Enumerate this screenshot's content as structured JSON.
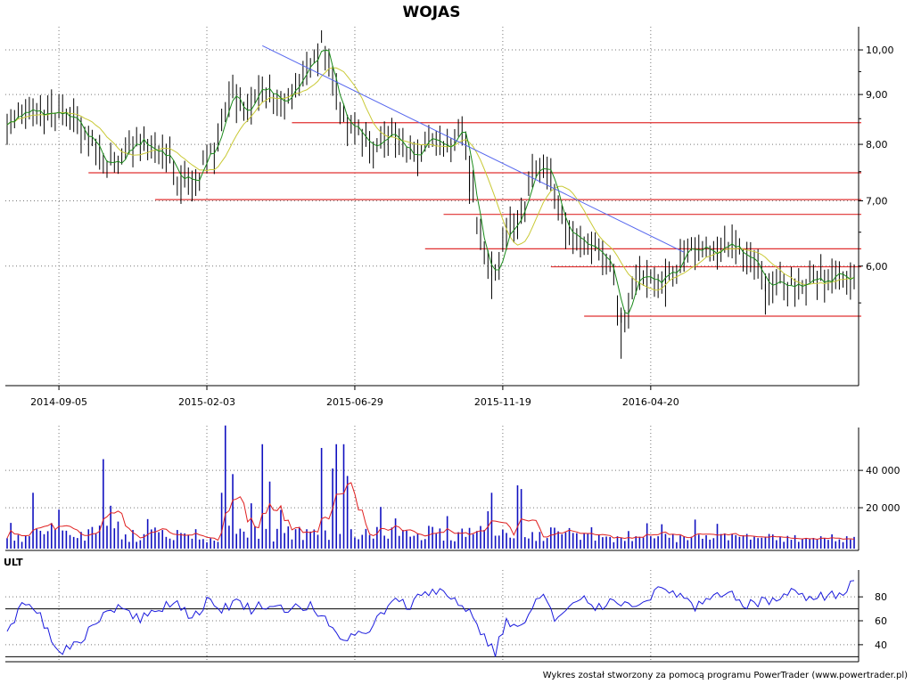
{
  "title": "WOJAS",
  "footer": "Wykres został stworzony za pomocą programu PowerTrader (www.powertrader.pl)",
  "colors": {
    "price_bar": "#000000",
    "ma_short": "#1a8a1a",
    "ma_long": "#c9c935",
    "trendline": "#5566ee",
    "support": "#e03030",
    "volume": "#1010c0",
    "volume_ma": "#e02020",
    "oscillator": "#1a1add"
  },
  "chart_data": [
    {
      "type": "ohlc",
      "name": "price",
      "x_ticks": [
        "2014-09-05",
        "2015-02-03",
        "2015-06-29",
        "2015-11-19",
        "2016-04-20"
      ],
      "y_ticks": [
        "10,00",
        "9,00",
        "8,00",
        "7,00",
        "6,00"
      ],
      "y_scale": "log",
      "ylim": [
        4.6,
        10.3
      ],
      "trendline": {
        "from": [
          69,
          10.1
        ],
        "to": [
          183,
          6.2
        ]
      },
      "support_levels": [
        {
          "value": 8.42,
          "x_from": 77,
          "x_to": 230
        },
        {
          "value": 7.48,
          "x_from": 22,
          "x_to": 230
        },
        {
          "value": 7.02,
          "x_from": 40,
          "x_to": 230
        },
        {
          "value": 6.78,
          "x_from": 118,
          "x_to": 230
        },
        {
          "value": 6.25,
          "x_from": 113,
          "x_to": 230
        },
        {
          "value": 5.99,
          "x_from": 147,
          "x_to": 230
        },
        {
          "value": 5.33,
          "x_from": 156,
          "x_to": 230
        }
      ],
      "close_anchors": [
        [
          0,
          8.3
        ],
        [
          6,
          8.7
        ],
        [
          10,
          8.5
        ],
        [
          16,
          8.6
        ],
        [
          22,
          8.2
        ],
        [
          26,
          7.6
        ],
        [
          30,
          7.7
        ],
        [
          36,
          8.1
        ],
        [
          42,
          7.8
        ],
        [
          47,
          7.4
        ],
        [
          50,
          7.3
        ],
        [
          53,
          7.6
        ],
        [
          56,
          7.9
        ],
        [
          59,
          8.6
        ],
        [
          61,
          9.2
        ],
        [
          64,
          8.6
        ],
        [
          67,
          9.1
        ],
        [
          71,
          9.0
        ],
        [
          75,
          8.9
        ],
        [
          81,
          9.6
        ],
        [
          85,
          10.1
        ],
        [
          88,
          9.3
        ],
        [
          91,
          8.5
        ],
        [
          95,
          8.2
        ],
        [
          99,
          8.0
        ],
        [
          104,
          8.2
        ],
        [
          108,
          7.9
        ],
        [
          115,
          8.0
        ],
        [
          120,
          7.9
        ],
        [
          123,
          8.3
        ],
        [
          126,
          7.1
        ],
        [
          129,
          6.1
        ],
        [
          132,
          5.85
        ],
        [
          134,
          6.4
        ],
        [
          138,
          6.6
        ],
        [
          142,
          7.4
        ],
        [
          145,
          7.6
        ],
        [
          148,
          7.2
        ],
        [
          150,
          6.7
        ],
        [
          153,
          6.4
        ],
        [
          158,
          6.2
        ],
        [
          162,
          6.1
        ],
        [
          165,
          5.5
        ],
        [
          167,
          5.3
        ],
        [
          169,
          5.6
        ],
        [
          172,
          5.9
        ],
        [
          178,
          5.85
        ],
        [
          182,
          6.1
        ],
        [
          188,
          6.25
        ],
        [
          194,
          6.25
        ],
        [
          200,
          6.1
        ],
        [
          205,
          5.85
        ],
        [
          212,
          5.7
        ],
        [
          218,
          5.8
        ],
        [
          224,
          5.8
        ],
        [
          229,
          5.95
        ]
      ],
      "n_bars": 230
    },
    {
      "type": "bar",
      "name": "volume",
      "y_ticks": [
        "40 000",
        "20 000"
      ],
      "ylim": [
        0,
        62000
      ],
      "spikes": [
        [
          7,
          28000
        ],
        [
          26,
          46000
        ],
        [
          58,
          28000
        ],
        [
          59,
          64000
        ],
        [
          61,
          38000
        ],
        [
          69,
          54000
        ],
        [
          71,
          34000
        ],
        [
          85,
          52000
        ],
        [
          88,
          41000
        ],
        [
          89,
          54000
        ],
        [
          91,
          54000
        ],
        [
          92,
          37000
        ],
        [
          131,
          28000
        ],
        [
          138,
          32000
        ],
        [
          139,
          30000
        ]
      ]
    },
    {
      "type": "line",
      "name": "ULT",
      "label": "ULT",
      "y_ticks": [
        "80",
        "60",
        "40"
      ],
      "ylim": [
        28,
        95
      ],
      "guides": [
        70,
        30
      ],
      "value_anchors": [
        [
          0,
          50
        ],
        [
          4,
          74
        ],
        [
          8,
          70
        ],
        [
          12,
          44
        ],
        [
          15,
          34
        ],
        [
          18,
          38
        ],
        [
          22,
          52
        ],
        [
          26,
          66
        ],
        [
          31,
          74
        ],
        [
          36,
          60
        ],
        [
          40,
          70
        ],
        [
          46,
          76
        ],
        [
          50,
          62
        ],
        [
          54,
          76
        ],
        [
          58,
          70
        ],
        [
          62,
          76
        ],
        [
          66,
          70
        ],
        [
          70,
          74
        ],
        [
          74,
          70
        ],
        [
          78,
          72
        ],
        [
          82,
          72
        ],
        [
          86,
          60
        ],
        [
          90,
          44
        ],
        [
          94,
          50
        ],
        [
          97,
          46
        ],
        [
          101,
          66
        ],
        [
          105,
          76
        ],
        [
          109,
          72
        ],
        [
          113,
          86
        ],
        [
          117,
          84
        ],
        [
          121,
          78
        ],
        [
          125,
          68
        ],
        [
          129,
          46
        ],
        [
          132,
          34
        ],
        [
          135,
          60
        ],
        [
          139,
          54
        ],
        [
          142,
          70
        ],
        [
          145,
          84
        ],
        [
          148,
          60
        ],
        [
          152,
          70
        ],
        [
          156,
          78
        ],
        [
          160,
          70
        ],
        [
          164,
          80
        ],
        [
          168,
          72
        ],
        [
          172,
          78
        ],
        [
          177,
          86
        ],
        [
          182,
          82
        ],
        [
          186,
          70
        ],
        [
          190,
          78
        ],
        [
          195,
          82
        ],
        [
          200,
          74
        ],
        [
          206,
          76
        ],
        [
          210,
          82
        ],
        [
          214,
          84
        ],
        [
          218,
          78
        ],
        [
          222,
          82
        ],
        [
          226,
          84
        ],
        [
          230,
          94
        ]
      ]
    }
  ]
}
